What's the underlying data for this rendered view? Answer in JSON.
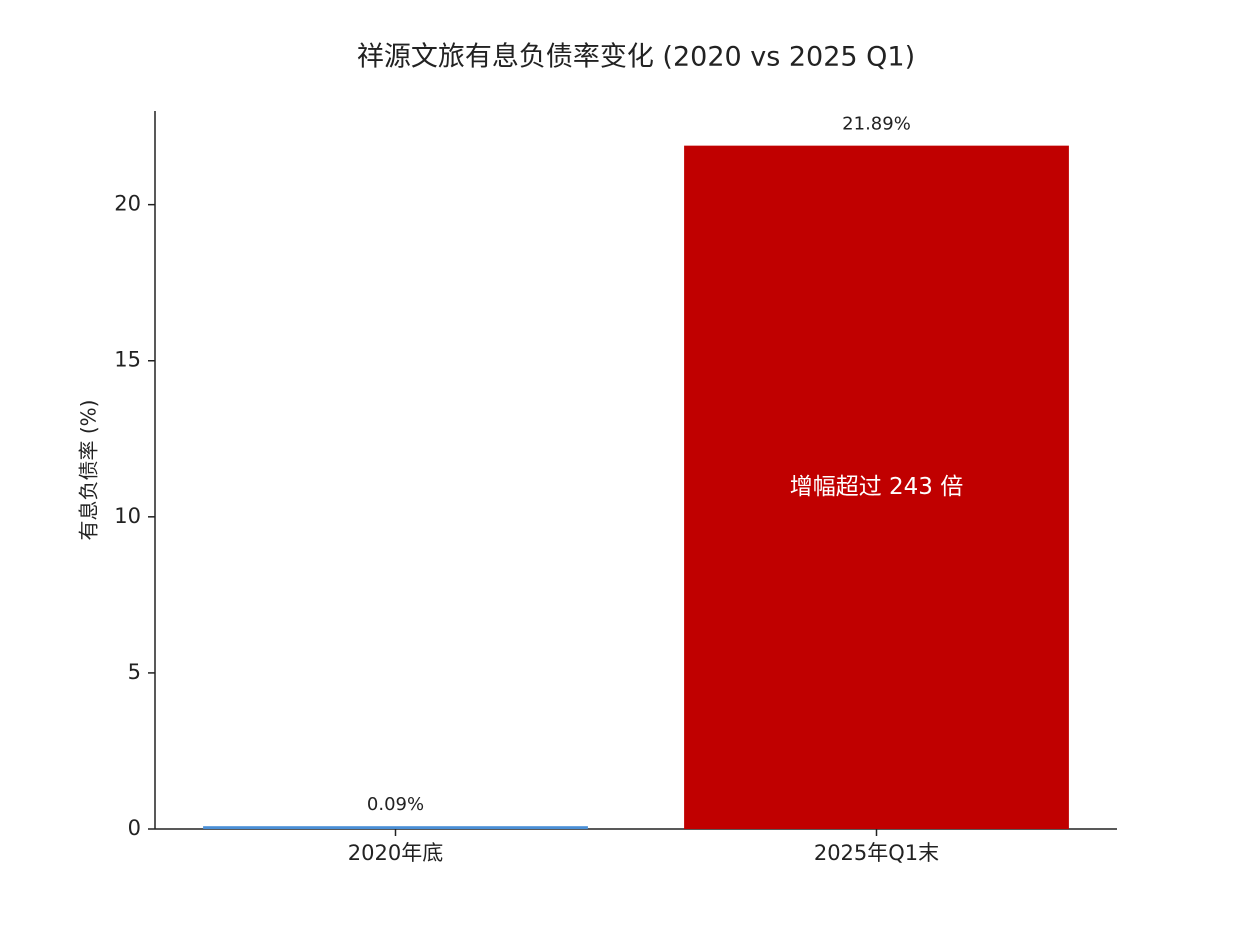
{
  "chart_data": {
    "type": "bar",
    "title": "祥源文旅有息负债率变化 (2020 vs 2025 Q1)",
    "y_label": "有息负债率 (%)",
    "categories": [
      "2020年底",
      "2025年Q1末"
    ],
    "values": [
      0.09,
      21.89
    ],
    "value_labels": [
      "0.09%",
      "21.89%"
    ],
    "colors": [
      "#4a8fd6",
      "#c00000"
    ],
    "annotation": "增幅超过 243 倍",
    "ylim": [
      0,
      23
    ],
    "yticks": [
      0,
      5,
      10,
      15,
      20
    ],
    "grid": false
  }
}
